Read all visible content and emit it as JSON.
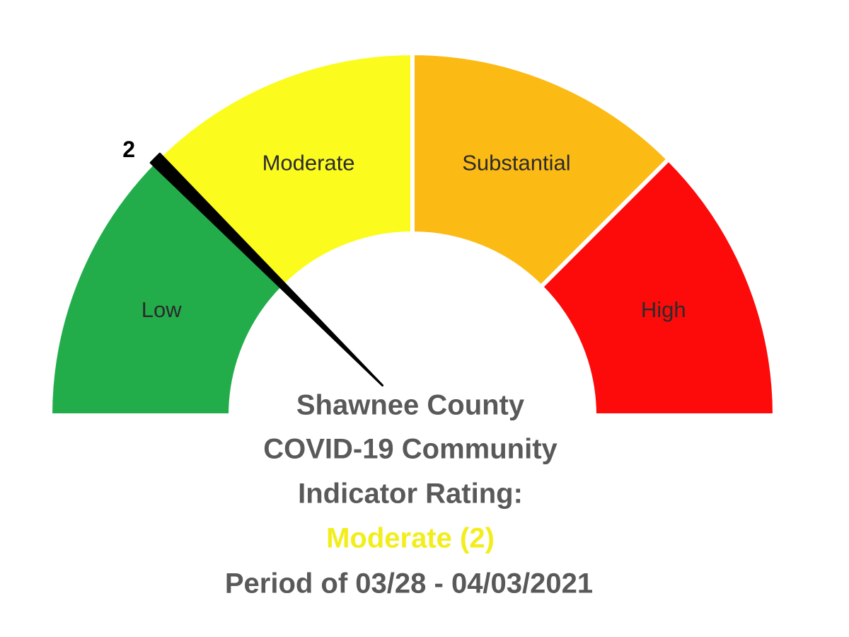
{
  "chart_data": {
    "type": "gauge",
    "bands": [
      {
        "name": "Low",
        "color": "#22ad4a"
      },
      {
        "name": "Moderate",
        "color": "#fbfb1d"
      },
      {
        "name": "Substantial",
        "color": "#fcbb14"
      },
      {
        "name": "High",
        "color": "#fd0a0a"
      }
    ],
    "ylim": [
      1,
      5
    ],
    "value": 2,
    "needle_color": "#000000",
    "title_lines": [
      "Shawnee County",
      "COVID-19 Community",
      "Indicator Rating:"
    ],
    "rating_label": "Moderate (2)",
    "rating_color": "#f2ee1c",
    "period": "Period of 03/28 - 04/03/2021"
  }
}
